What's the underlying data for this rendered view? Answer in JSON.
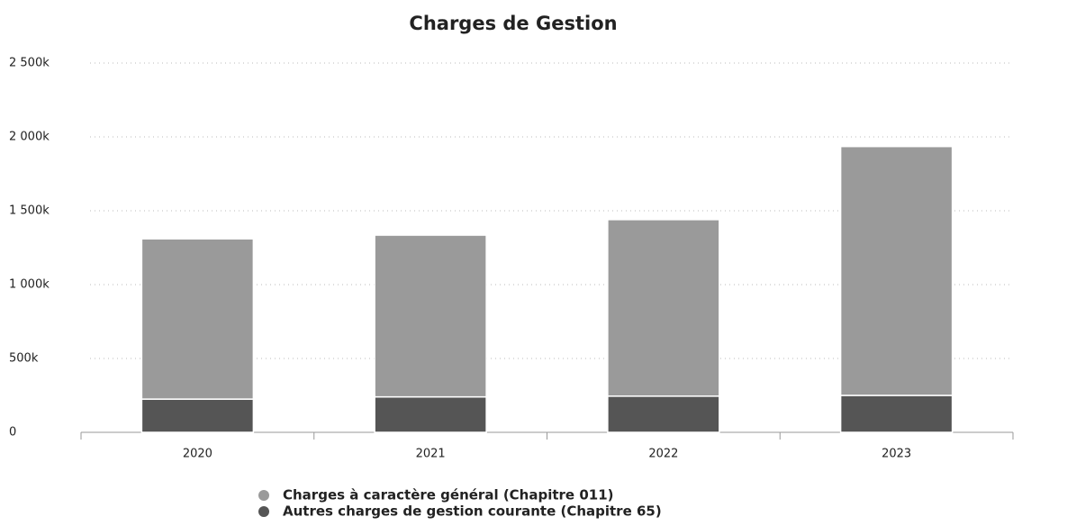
{
  "chart_data": {
    "type": "stacked_bar",
    "title": "Charges de Gestion",
    "categories": [
      "2020",
      "2021",
      "2022",
      "2023"
    ],
    "series": [
      {
        "name": "Charges à caractère général (Chapitre 011)",
        "color": "#9a9a9a",
        "values": [
          1085000,
          1095000,
          1195000,
          1685000
        ]
      },
      {
        "name": "Autres charges de gestion courante (Chapitre 65)",
        "color": "#555555",
        "values": [
          225000,
          240000,
          245000,
          250000
        ]
      }
    ],
    "ylim": [
      0,
      2500000
    ],
    "yticks": [
      0,
      {
        "value": 500000,
        "label": "500k"
      },
      {
        "value": 1000000,
        "label": "1 000k"
      },
      {
        "value": 1500000,
        "label": "1 500k"
      },
      {
        "value": 2000000,
        "label": "2 000k"
      },
      {
        "value": 2500000,
        "label": "2 500k"
      }
    ],
    "grid": true
  }
}
